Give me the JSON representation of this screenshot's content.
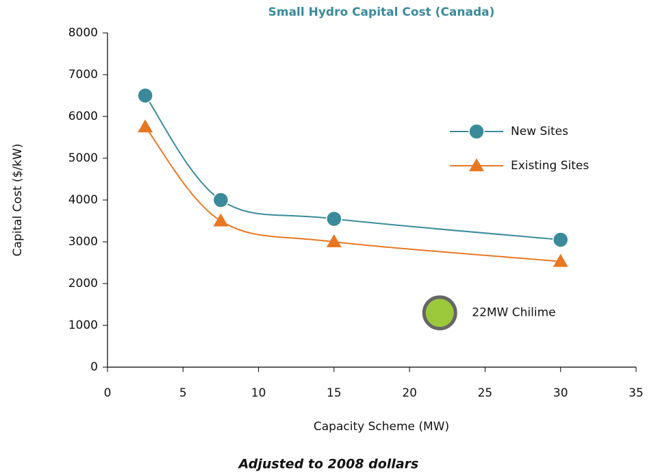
{
  "chart_data": {
    "type": "line",
    "title": "Small Hydro Capital Cost (Canada)",
    "x_label": "Capacity Scheme (MW)",
    "y_label": "Capital Cost ($/kW)",
    "footnote": "Adjusted to 2008 dollars",
    "xlim": [
      0,
      35
    ],
    "xticks": [
      0,
      5,
      10,
      15,
      20,
      25,
      30,
      35
    ],
    "ylim": [
      0,
      8000
    ],
    "yticks": [
      0,
      1000,
      2000,
      3000,
      4000,
      5000,
      6000,
      7000,
      8000
    ],
    "legend": "right",
    "series": [
      {
        "name": "New Sites",
        "color": "#3a8a9a",
        "marker": "circle",
        "x": [
          2.5,
          7.5,
          15,
          30
        ],
        "values": [
          6500,
          4000,
          3550,
          3050
        ]
      },
      {
        "name": "Existing Sites",
        "color": "#e87722",
        "marker": "triangle",
        "x": [
          2.5,
          7.5,
          15,
          30
        ],
        "values": [
          5750,
          3500,
          3000,
          2530
        ]
      },
      {
        "name": "22MW Chilime",
        "color": "#9cc83c",
        "marker": "dot",
        "x": [
          22
        ],
        "values": [
          1300
        ]
      }
    ]
  }
}
